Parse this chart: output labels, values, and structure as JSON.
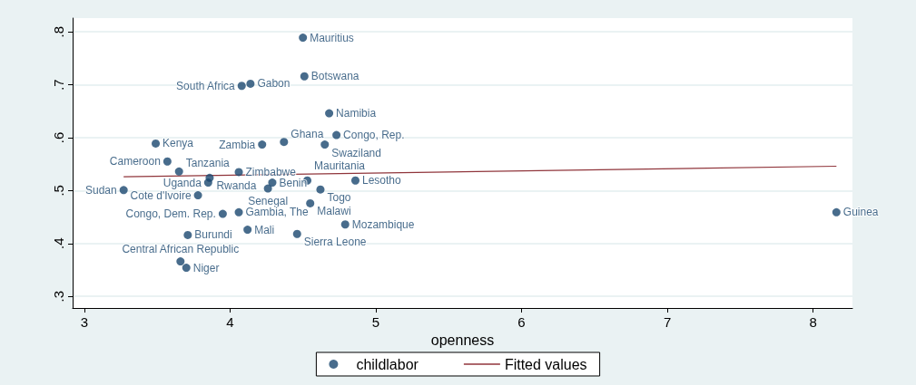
{
  "chart_data": {
    "type": "scatter",
    "xlabel": "openness",
    "xlim": [
      2.92,
      8.27
    ],
    "xticks": [
      3,
      4,
      5,
      6,
      7,
      8
    ],
    "ylim": [
      0.278,
      0.826
    ],
    "yticks": [
      {
        "value": 0.3,
        "label": ".3"
      },
      {
        "value": 0.4,
        "label": ".4"
      },
      {
        "value": 0.5,
        "label": ".5"
      },
      {
        "value": 0.6,
        "label": ".6"
      },
      {
        "value": 0.7,
        "label": ".7"
      },
      {
        "value": 0.8,
        "label": ".8"
      }
    ],
    "grid": "y",
    "legend": "bottom",
    "marker": "circle",
    "series": [
      {
        "name": "childlabor",
        "color": "#1a476f",
        "x": [
          4.5,
          4.51,
          4.08,
          4.14,
          4.68,
          4.73,
          4.22,
          4.37,
          4.65,
          3.49,
          3.57,
          3.65,
          4.06,
          3.86,
          3.85,
          4.29,
          4.26,
          4.53,
          4.86,
          4.62,
          3.27,
          3.78,
          4.55,
          4.06,
          3.95,
          4.79,
          4.12,
          3.71,
          4.46,
          3.66,
          3.7,
          8.16
        ],
        "values": [
          0.789,
          0.716,
          0.698,
          0.702,
          0.646,
          0.605,
          0.587,
          0.592,
          0.587,
          0.589,
          0.555,
          0.536,
          0.535,
          0.524,
          0.515,
          0.515,
          0.504,
          0.519,
          0.519,
          0.502,
          0.501,
          0.491,
          0.476,
          0.459,
          0.456,
          0.436,
          0.426,
          0.416,
          0.418,
          0.366,
          0.354,
          0.459
        ],
        "value_labels": [
          "Mauritius",
          "Botswana",
          "South Africa",
          "Gabon",
          "Namibia",
          "Congo, Rep.",
          "Zambia",
          "Ghana",
          "Swaziland",
          "Kenya",
          "Cameroon",
          "Tanzania",
          "Zimbabwe",
          "Rwanda",
          "Uganda",
          "Benin",
          "Senegal",
          "Mauritania",
          "Lesotho",
          "Togo",
          "Sudan",
          "Cote d'Ivoire",
          "Malawi",
          "Gambia, The",
          "Congo, Dem. Rep.",
          "Mozambique",
          "Mali",
          "Burundi",
          "Sierra Leone",
          "Central African Republic",
          "Niger",
          "Guinea"
        ]
      },
      {
        "name": "Fitted values",
        "type": "line",
        "color": "#90353b",
        "marker": "none",
        "x": [
          3.27,
          8.16
        ],
        "values": [
          0.526,
          0.546
        ]
      }
    ]
  }
}
